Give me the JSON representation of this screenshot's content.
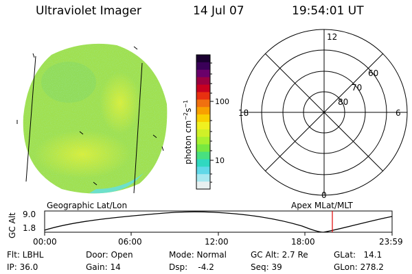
{
  "header": {
    "instrument": "Ultraviolet Imager",
    "date": "14 Jul 07",
    "time": "19:54:01 UT"
  },
  "colorbar": {
    "unit": "photon cm",
    "unit_exp1": "−2",
    "unit_mid": "s",
    "unit_exp2": "−1",
    "tick_high": "100",
    "tick_low": "10",
    "colors": [
      "#1a0030",
      "#3a0058",
      "#6a006a",
      "#9a0040",
      "#c80020",
      "#e83010",
      "#f07010",
      "#f8a000",
      "#f8d000",
      "#f0f020",
      "#d0f028",
      "#a8f030",
      "#78e840",
      "#48e080",
      "#30d8c0",
      "#60d8e8",
      "#a8e8f0",
      "#e8f0f0"
    ]
  },
  "polar": {
    "mlt_top": "12",
    "mlt_right": "6",
    "mlt_bottom": "0",
    "mlt_left": "18",
    "lat_60": "60",
    "lat_70": "70",
    "lat_80": "80"
  },
  "orbit": {
    "left_label": "Geographic Lat/Lon",
    "right_label": "Apex  MLat/MLT",
    "yaxis_label": "GC Alt",
    "ymax": "9.0",
    "ymin": "1.8",
    "xticks": [
      "00:00",
      "06:00",
      "12:00",
      "18:00",
      "23:59"
    ],
    "current_time_fraction": 0.828
  },
  "footer": {
    "filter": "Flt: LBHL",
    "ip": "IP: 36.0",
    "door": "Door: Open",
    "gain": "Gain: 14",
    "mode": "Mode: Normal",
    "dsp": "Dsp:    -4.2",
    "gcalt": "GC Alt: 2.7 Re",
    "seq": "Seq: 39",
    "glat": "GLat:   14.1",
    "glon": "GLon: 278.2"
  },
  "colors": {
    "disk_main": "#a0e050",
    "disk_bright": "#d8f038",
    "limb_cyan": "#60e0e8",
    "marker_red": "#e00000"
  }
}
